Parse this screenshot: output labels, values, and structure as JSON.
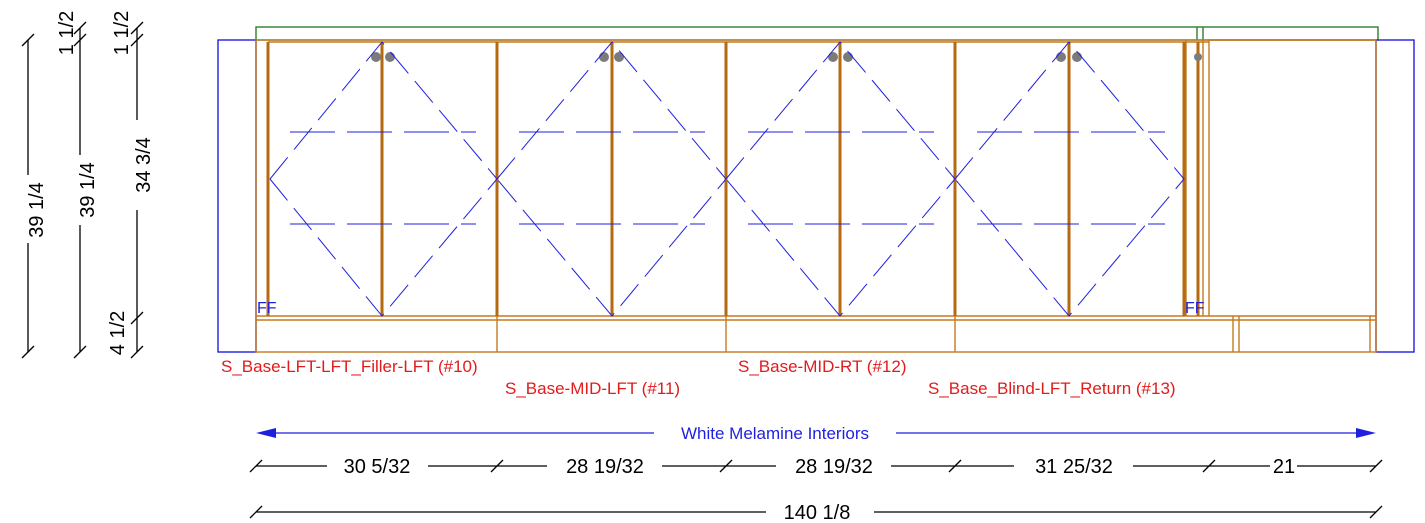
{
  "vertical_dimensions": {
    "col1": {
      "total": "39 1/4"
    },
    "col2": {
      "top": "1 1/2",
      "total": "39 1/4"
    },
    "col3": {
      "top": "1 1/2",
      "middle": "34 3/4",
      "bottom": "4 1/2"
    }
  },
  "cabinet_labels": [
    "S_Base-LFT-LFT_Filler-LFT (#10)",
    "S_Base-MID-LFT (#11)",
    "S_Base-MID-RT (#12)",
    "S_Base_Blind-LFT_Return (#13)"
  ],
  "filler_marks": [
    "FF",
    "FF"
  ],
  "interior_note": "White Melamine Interiors",
  "horizontal_dimensions": [
    "30 5/32",
    "28 19/32",
    "28 19/32",
    "31 25/32",
    "21"
  ],
  "overall_width": "140 1/8",
  "colors": {
    "cabinet": "#c57a1e",
    "panel": "#1f1fe0",
    "countertop": "#2e7d2e",
    "label": "#e21b1b",
    "hinge": "#7b7b7b"
  }
}
